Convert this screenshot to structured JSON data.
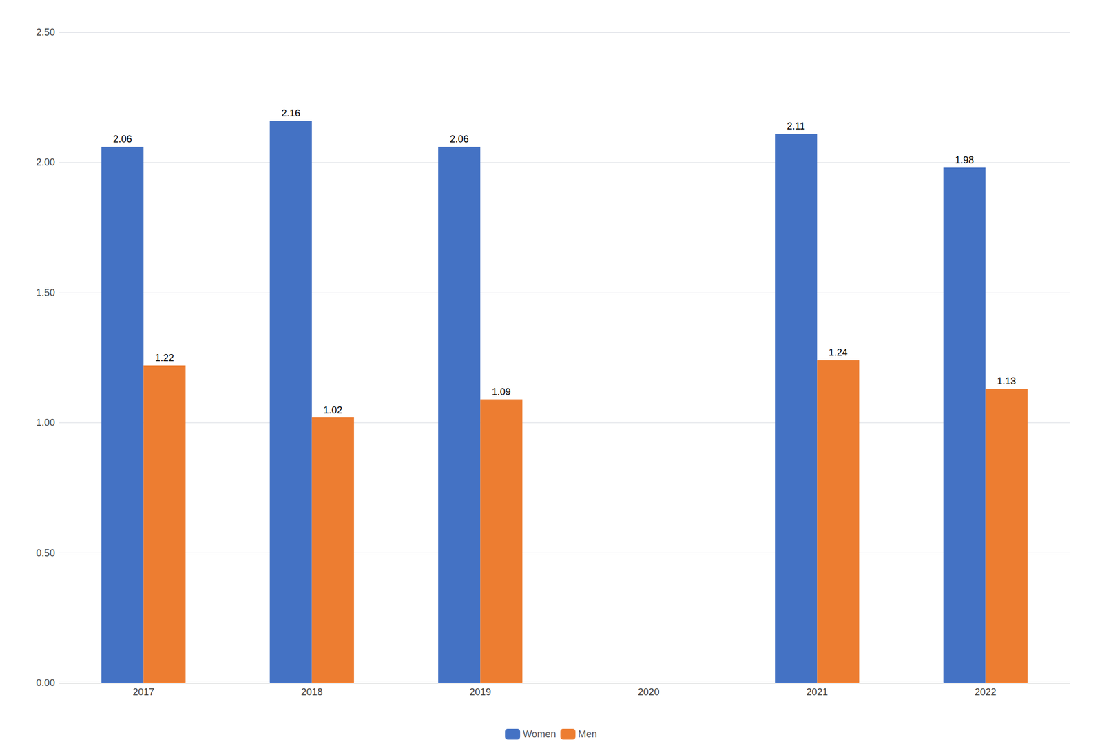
{
  "chart_data": {
    "type": "bar",
    "categories": [
      "2017",
      "2018",
      "2019",
      "2020",
      "2021",
      "2022"
    ],
    "series": [
      {
        "name": "Women",
        "color": "#4472C4",
        "values": [
          2.06,
          2.16,
          2.06,
          null,
          2.11,
          1.98
        ]
      },
      {
        "name": "Men",
        "color": "#ED7D31",
        "values": [
          1.22,
          1.02,
          1.09,
          null,
          1.24,
          1.13
        ]
      }
    ],
    "ylim": [
      0,
      2.5
    ],
    "yticks": [
      {
        "value": 0,
        "label": "0.00"
      },
      {
        "value": 0.5,
        "label": "0.50"
      },
      {
        "value": 1,
        "label": "1.00"
      },
      {
        "value": 1.5,
        "label": "1.50"
      },
      {
        "value": 2,
        "label": "2.00"
      },
      {
        "value": 2.5,
        "label": "2.50"
      }
    ],
    "grid": true,
    "legend": "bottom",
    "data_labels": true
  }
}
